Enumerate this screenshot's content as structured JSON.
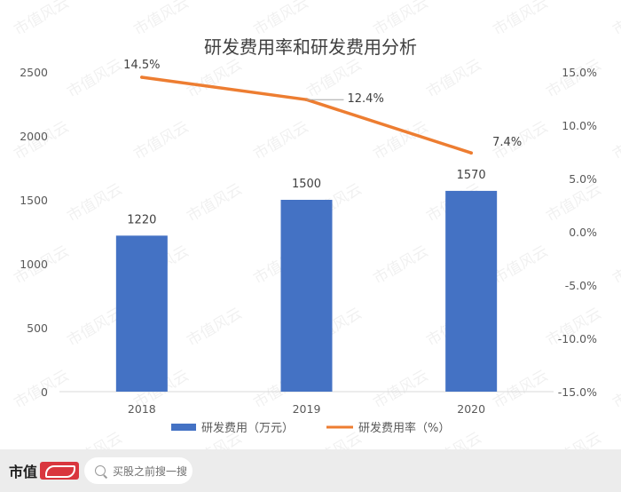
{
  "watermark": "市值风云",
  "chart_data": {
    "type": "bar+line",
    "title": "研发费用率和研发费用分析",
    "categories": [
      "2018",
      "2019",
      "2020"
    ],
    "series": [
      {
        "name": "研发费用（万元）",
        "type": "bar",
        "axis": "left",
        "color": "#4472c4",
        "values": [
          1220,
          1500,
          1570
        ],
        "labels": [
          "1220",
          "1500",
          "1570"
        ]
      },
      {
        "name": "研发费用率（%）",
        "type": "line",
        "axis": "right",
        "color": "#ed7d31",
        "values": [
          14.5,
          12.4,
          7.4
        ],
        "labels": [
          "14.5%",
          "12.4%",
          "7.4%"
        ]
      }
    ],
    "y_left": {
      "min": 0,
      "max": 2500,
      "ticks": [
        0,
        500,
        1000,
        1500,
        2000,
        2500
      ],
      "tick_labels": [
        "0",
        "500",
        "1000",
        "1500",
        "2000",
        "2500"
      ]
    },
    "y_right": {
      "min": -15,
      "max": 15,
      "ticks": [
        -15,
        -10,
        -5,
        0,
        5,
        10,
        15
      ],
      "tick_labels": [
        "-15.0%",
        "-10.0%",
        "-5.0%",
        "0.0%",
        "5.0%",
        "10.0%",
        "15.0%"
      ]
    },
    "grid": false,
    "legend": "bottom"
  },
  "footer": {
    "brand": "市值",
    "search_placeholder": "买股之前搜一搜"
  }
}
